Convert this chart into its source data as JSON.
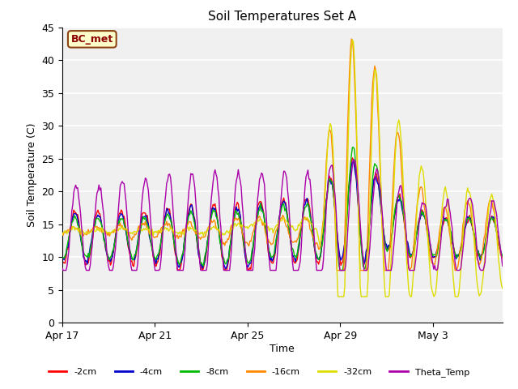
{
  "title": "Soil Temperatures Set A",
  "xlabel": "Time",
  "ylabel": "Soil Temperature (C)",
  "ylim": [
    0,
    45
  ],
  "background_color": "#f0f0f0",
  "plot_bg_color": "#f0f0f0",
  "annotation_text": "BC_met",
  "annotation_bg": "#ffffcc",
  "annotation_border": "#8b4513",
  "tick_labels": [
    "Apr 17",
    "Apr 21",
    "Apr 25",
    "Apr 29",
    "May 3"
  ],
  "tick_positions": [
    0,
    4,
    8,
    12,
    16
  ],
  "series": {
    "2cm": {
      "color": "#ff0000",
      "label": "-2cm"
    },
    "4cm": {
      "color": "#0000cc",
      "label": "-4cm"
    },
    "8cm": {
      "color": "#00bb00",
      "label": "-8cm"
    },
    "16cm": {
      "color": "#ff8800",
      "label": "-16cm"
    },
    "32cm": {
      "color": "#dddd00",
      "label": "-32cm"
    },
    "theta": {
      "color": "#aa00aa",
      "label": "Theta_Temp"
    }
  },
  "legend_colors": [
    "#ff0000",
    "#0000cc",
    "#00bb00",
    "#ff8800",
    "#dddd00",
    "#aa00aa"
  ],
  "legend_labels": [
    "-2cm",
    "-4cm",
    "-8cm",
    "-16cm",
    "-32cm",
    "Theta_Temp"
  ]
}
